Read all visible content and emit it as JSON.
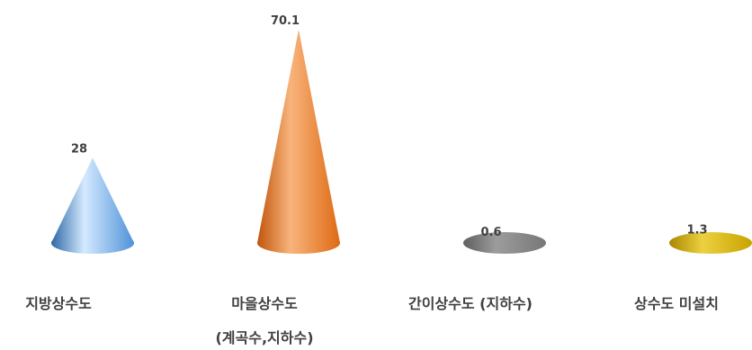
{
  "chart_data": {
    "type": "bar",
    "bar_shape": "cone",
    "categories": [
      "지방상수도",
      "마을상수도\n(계곡수,지하수)",
      "간이상수도 (지하수)",
      "상수도 미설치"
    ],
    "values": [
      28,
      70.1,
      0.6,
      1.3
    ],
    "title": "",
    "xlabel": "",
    "ylabel": "",
    "grid": false,
    "legend": "none",
    "data_labels_shown": true,
    "label_color": "#404040",
    "colors": [
      {
        "dark": "#2d68a6",
        "light": "#d4eaff",
        "mid": "#4f92d8"
      },
      {
        "dark": "#c0550c",
        "light": "#f8b47c",
        "mid": "#de6a14"
      },
      {
        "dark": "#5f5f5f",
        "light": "#9c9c9c",
        "mid": "#777777"
      },
      {
        "dark": "#a88700",
        "light": "#ecd040",
        "mid": "#c9a400"
      }
    ]
  }
}
